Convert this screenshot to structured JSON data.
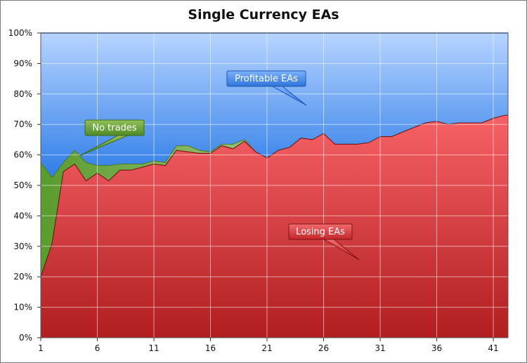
{
  "chart_data": {
    "type": "area",
    "title": "Single Currency EAs",
    "xlabel": "",
    "ylabel": "",
    "xlim": [
      1,
      42.3
    ],
    "ylim": [
      0,
      100
    ],
    "y_unit": "%",
    "y_ticks": [
      "0%",
      "10%",
      "20%",
      "30%",
      "40%",
      "50%",
      "60%",
      "70%",
      "80%",
      "90%",
      "100%"
    ],
    "y_tick_values": [
      0,
      10,
      20,
      30,
      40,
      50,
      60,
      70,
      80,
      90,
      100
    ],
    "x_ticks": [
      "1",
      "6",
      "11",
      "16",
      "21",
      "26",
      "31",
      "36",
      "41"
    ],
    "x_tick_values": [
      1,
      6,
      11,
      16,
      21,
      26,
      31,
      36,
      41
    ],
    "grid": true,
    "stacked": true,
    "x": [
      1,
      2,
      3,
      4,
      5,
      6,
      7,
      8,
      9,
      10,
      11,
      12,
      13,
      14,
      15,
      16,
      17,
      18,
      19,
      20,
      21,
      22,
      23,
      24,
      25,
      26,
      27,
      28,
      29,
      30,
      31,
      32,
      33,
      34,
      35,
      36,
      37,
      38,
      39,
      40,
      41,
      42,
      42.3
    ],
    "series": [
      {
        "name": "Losing EAs",
        "color": "#c8262a",
        "values": [
          20,
          31,
          54.5,
          57,
          51.5,
          54,
          51.5,
          55,
          55,
          56,
          57,
          56.5,
          61.5,
          61,
          60.5,
          60.5,
          63,
          62,
          64.5,
          61,
          59,
          61.5,
          62.5,
          65.5,
          65,
          67,
          63.5,
          63.5,
          63.5,
          64,
          66,
          66,
          67.5,
          69,
          70.5,
          71,
          70,
          70.5,
          70.5,
          70.5,
          72,
          73,
          73
        ]
      },
      {
        "name": "No trades",
        "color": "#6fa23a",
        "values": [
          37.5,
          21.5,
          3,
          4.5,
          6,
          2.5,
          5,
          2,
          2,
          1,
          1,
          1,
          1.5,
          2,
          1,
          0.5,
          0.5,
          1.5,
          0.5,
          0,
          0,
          0,
          0,
          0,
          0,
          0,
          0,
          0,
          0,
          0,
          0,
          0,
          0,
          0,
          0,
          0,
          0,
          0,
          0,
          0,
          0,
          0,
          0
        ]
      },
      {
        "name": "Profitable EAs",
        "color": "#4d8fe6",
        "values": [
          42.5,
          47.5,
          42.5,
          38.5,
          42.5,
          43.5,
          43.5,
          43,
          43,
          43,
          42,
          42.5,
          37,
          37,
          38.5,
          39,
          36.5,
          36.5,
          35,
          39,
          41,
          38.5,
          37.5,
          34.5,
          35,
          33,
          36.5,
          36.5,
          36.5,
          36,
          34,
          34,
          32.5,
          31,
          29.5,
          29,
          30,
          29.5,
          29.5,
          29.5,
          28,
          27,
          27
        ]
      }
    ],
    "annotations": [
      {
        "text": "Profitable EAs",
        "series": "Profitable EAs",
        "color": "#4d8fe6"
      },
      {
        "text": "No trades",
        "series": "No trades",
        "color": "#6fa23a"
      },
      {
        "text": "Losing EAs",
        "series": "Losing EAs",
        "color": "#cc3a3e"
      }
    ]
  }
}
